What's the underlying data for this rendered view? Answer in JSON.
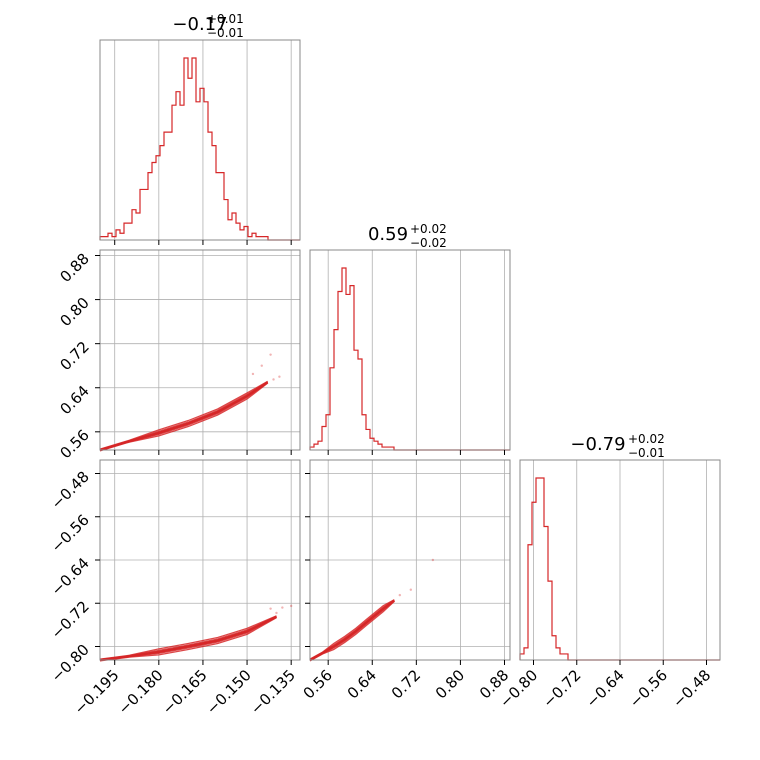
{
  "chart_data": {
    "type": "corner",
    "color": "#d62728",
    "parameters": [
      {
        "title": {
          "value": "−0.17",
          "plus": "+0.01",
          "minus": "−0.01"
        },
        "range": [
          -0.2,
          -0.132
        ],
        "ticks": [
          -0.195,
          -0.18,
          -0.165,
          -0.15,
          -0.135
        ],
        "tick_labels": [
          "−0.195",
          "−0.180",
          "−0.165",
          "−0.150",
          "−0.135"
        ],
        "histogram": {
          "bin_start": -0.2,
          "bin_width": 0.00136,
          "counts": [
            1,
            1,
            2,
            1,
            3,
            2,
            5,
            5,
            9,
            8,
            15,
            15,
            20,
            23,
            25,
            28,
            32,
            32,
            40,
            44,
            40,
            54,
            48,
            54,
            41,
            45,
            41,
            32,
            28,
            20,
            20,
            12,
            6,
            8,
            5,
            3,
            4,
            1,
            2,
            1,
            1,
            1,
            0,
            0,
            0,
            0,
            0,
            0,
            0,
            0
          ]
        }
      },
      {
        "title": {
          "value": "0.59",
          "plus": "+0.02",
          "minus": "−0.02"
        },
        "range": [
          0.527,
          0.89
        ],
        "ticks": [
          0.56,
          0.64,
          0.72,
          0.8,
          0.88
        ],
        "tick_labels": [
          "0.56",
          "0.64",
          "0.72",
          "0.80",
          "0.88"
        ],
        "histogram": {
          "bin_start": 0.527,
          "bin_width": 0.00726,
          "counts": [
            1,
            2,
            3,
            8,
            12,
            28,
            41,
            54,
            62,
            53,
            56,
            34,
            31,
            12,
            7,
            4,
            3,
            2,
            1,
            1,
            1,
            0,
            0,
            0,
            0,
            0,
            0,
            0,
            0,
            0,
            0,
            0,
            0,
            0,
            0,
            0,
            0,
            0,
            0,
            0,
            0,
            0,
            0,
            0,
            0,
            0,
            0,
            0,
            0,
            0
          ]
        }
      },
      {
        "title": {
          "value": "−0.79",
          "plus": "+0.02",
          "minus": "−0.01"
        },
        "range": [
          -0.825,
          -0.455
        ],
        "ticks": [
          -0.8,
          -0.72,
          -0.64,
          -0.56,
          -0.48
        ],
        "tick_labels": [
          "−0.80",
          "−0.72",
          "−0.64",
          "−0.56",
          "−0.48"
        ],
        "histogram": {
          "bin_start": -0.825,
          "bin_width": 0.0074,
          "counts": [
            1,
            2,
            19,
            26,
            30,
            30,
            22,
            13,
            4,
            2,
            1,
            1,
            0,
            0,
            0,
            0,
            0,
            0,
            0,
            0,
            0,
            0,
            0,
            0,
            0,
            0,
            0,
            0,
            0,
            0,
            0,
            0,
            0,
            0,
            0,
            0,
            0,
            0,
            0,
            0,
            0,
            0,
            0,
            0,
            0,
            0,
            0,
            0,
            0,
            0
          ]
        }
      }
    ],
    "pairs": [
      {
        "x_param": 0,
        "y_param": 1,
        "curve": [
          [
            -0.2,
            0.527
          ],
          [
            -0.19,
            0.543
          ],
          [
            -0.18,
            0.558
          ],
          [
            -0.17,
            0.575
          ],
          [
            -0.16,
            0.596
          ],
          [
            -0.15,
            0.625
          ],
          [
            -0.143,
            0.65
          ]
        ],
        "outliers": [
          [
            -0.148,
            0.665
          ],
          [
            -0.145,
            0.68
          ],
          [
            -0.142,
            0.7
          ],
          [
            -0.139,
            0.66
          ],
          [
            -0.141,
            0.655
          ]
        ]
      },
      {
        "x_param": 0,
        "y_param": 2,
        "curve": [
          [
            -0.2,
            -0.825
          ],
          [
            -0.19,
            -0.818
          ],
          [
            -0.18,
            -0.81
          ],
          [
            -0.17,
            -0.8
          ],
          [
            -0.16,
            -0.789
          ],
          [
            -0.15,
            -0.772
          ],
          [
            -0.14,
            -0.745
          ]
        ],
        "outliers": [
          [
            -0.142,
            -0.73
          ],
          [
            -0.138,
            -0.728
          ],
          [
            -0.135,
            -0.725
          ],
          [
            -0.14,
            -0.738
          ]
        ]
      },
      {
        "x_param": 1,
        "y_param": 2,
        "curve": [
          [
            0.527,
            -0.825
          ],
          [
            0.55,
            -0.812
          ],
          [
            0.57,
            -0.8
          ],
          [
            0.59,
            -0.787
          ],
          [
            0.61,
            -0.772
          ],
          [
            0.63,
            -0.755
          ],
          [
            0.66,
            -0.73
          ],
          [
            0.68,
            -0.715
          ]
        ],
        "outliers": [
          [
            0.75,
            -0.64
          ],
          [
            0.69,
            -0.705
          ],
          [
            0.71,
            -0.695
          ]
        ]
      }
    ]
  }
}
